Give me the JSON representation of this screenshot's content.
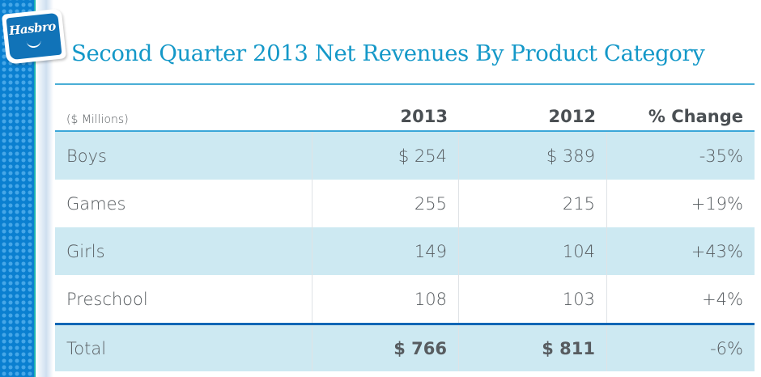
{
  "brand": {
    "logo_text": "Hasbro"
  },
  "title": "Second Quarter 2013 Net Revenues By Product Category",
  "table": {
    "units_label": "($ Millions)",
    "columns": [
      "2013",
      "2012",
      "% Change"
    ],
    "rows": [
      {
        "category": "Boys",
        "y2013": "$ 254",
        "y2012": "$ 389",
        "change": "-35%"
      },
      {
        "category": "Games",
        "y2013": "255",
        "y2012": "215",
        "change": "+19%"
      },
      {
        "category": "Girls",
        "y2013": "149",
        "y2012": "104",
        "change": "+43%"
      },
      {
        "category": "Preschool",
        "y2013": "108",
        "y2012": "103",
        "change": "+4%"
      }
    ],
    "total": {
      "category": "Total",
      "y2013": "$ 766",
      "y2012": "$ 811",
      "change": "-6%"
    }
  },
  "colors": {
    "title": "#1498c8",
    "accent_rule": "#4aaed6",
    "row_shade": "#cde9f2",
    "total_rule": "#1166b5",
    "side_bar": "#0a7fd0"
  }
}
